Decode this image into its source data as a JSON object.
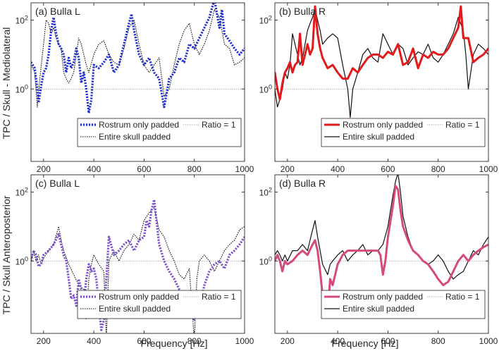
{
  "figure": {
    "ylabel_top": "TPC / Skull - Mediolateral",
    "ylabel_bottom": "TPC / Skull Anteroposterior",
    "xlabel": "Frequency [Hz]"
  },
  "chart_data": [
    {
      "type": "line",
      "title": "(a) Bulla L",
      "xlim": [
        150,
        1000
      ],
      "ylim_log10": [
        -2.1,
        2.5
      ],
      "x_ticks": [
        200,
        400,
        600,
        800,
        1000
      ],
      "y_ticks": [
        {
          "value": 100,
          "label": "10",
          "exp": "2"
        },
        {
          "value": 1,
          "label": "10",
          "exp": "0"
        }
      ],
      "legend": [
        "Rostrum only padded",
        "Ratio = 1",
        "Entire skull padded"
      ],
      "series": [
        {
          "name": "Rostrum only padded",
          "color": "#1f2fd0",
          "style": "dotted-thick",
          "x": [
            150,
            165,
            175,
            180,
            190,
            200,
            210,
            220,
            230,
            240,
            250,
            260,
            270,
            280,
            290,
            300,
            310,
            320,
            330,
            340,
            350,
            360,
            370,
            380,
            390,
            400,
            420,
            440,
            460,
            480,
            500,
            520,
            540,
            550,
            560,
            580,
            600,
            620,
            640,
            660,
            680,
            700,
            720,
            740,
            760,
            780,
            800,
            820,
            840,
            860,
            880,
            890,
            900,
            910,
            920,
            940,
            960,
            980,
            1000
          ],
          "y": [
            6,
            4,
            1,
            0.4,
            1.2,
            3,
            4,
            10,
            50,
            120,
            40,
            20,
            15,
            10,
            3,
            8,
            4,
            6,
            15,
            8,
            1.5,
            3,
            1,
            0.2,
            0.5,
            5,
            4,
            6,
            10,
            3,
            5,
            20,
            80,
            150,
            50,
            10,
            5,
            8,
            3,
            2,
            0.3,
            2,
            3,
            8,
            6,
            20,
            15,
            30,
            60,
            120,
            400,
            150,
            60,
            200,
            40,
            25,
            15,
            10,
            15
          ]
        },
        {
          "name": "Ratio = 1",
          "color": "#aaaaaa",
          "style": "reference",
          "x": [
            150,
            1000
          ],
          "y": [
            1,
            1
          ]
        },
        {
          "name": "Entire skull padded",
          "color": "#111111",
          "style": "dotted-thin",
          "x": [
            150,
            165,
            175,
            185,
            200,
            210,
            220,
            230,
            240,
            250,
            260,
            270,
            280,
            290,
            300,
            310,
            320,
            330,
            340,
            350,
            360,
            370,
            380,
            400,
            420,
            440,
            460,
            480,
            500,
            520,
            540,
            560,
            580,
            600,
            620,
            640,
            660,
            680,
            700,
            720,
            740,
            760,
            780,
            800,
            820,
            840,
            860,
            880,
            900,
            920,
            940,
            960,
            980,
            1000
          ],
          "y": [
            5,
            3,
            0.3,
            2,
            20,
            100,
            80,
            40,
            60,
            30,
            20,
            15,
            3,
            2,
            1.5,
            2,
            3,
            10,
            30,
            20,
            10,
            5,
            3,
            10,
            20,
            25,
            10,
            6,
            5,
            15,
            60,
            100,
            20,
            5,
            3,
            5,
            8,
            0.6,
            1,
            5,
            20,
            50,
            80,
            20,
            10,
            20,
            50,
            200,
            120,
            20,
            15,
            5,
            6,
            8
          ]
        }
      ]
    },
    {
      "type": "line",
      "title": "(b) Bulla R",
      "xlim": [
        150,
        1000
      ],
      "ylim_log10": [
        -2.1,
        2.5
      ],
      "x_ticks": [
        200,
        400,
        600,
        800,
        1000
      ],
      "y_ticks": [
        {
          "value": 100,
          "label": "10",
          "exp": "2"
        },
        {
          "value": 1,
          "label": "10",
          "exp": "0"
        }
      ],
      "legend": [
        "Rostrum only padded",
        "Ratio = 1",
        "Entire skull padded"
      ],
      "series": [
        {
          "name": "Rostrum only padded",
          "color": "#e31a1c",
          "style": "solid-thick",
          "x": [
            150,
            160,
            170,
            180,
            190,
            200,
            210,
            220,
            230,
            240,
            250,
            260,
            270,
            280,
            290,
            300,
            310,
            320,
            330,
            340,
            360,
            380,
            400,
            420,
            440,
            460,
            480,
            500,
            520,
            540,
            560,
            580,
            600,
            620,
            640,
            660,
            680,
            700,
            720,
            740,
            760,
            780,
            800,
            820,
            840,
            860,
            880,
            890,
            900,
            920,
            940,
            960,
            980,
            1000
          ],
          "y": [
            3,
            1,
            0.5,
            1.5,
            3,
            4,
            6,
            3,
            5,
            6,
            40,
            5,
            10,
            20,
            10,
            15,
            250,
            40,
            15,
            8,
            4,
            5,
            3,
            2,
            2,
            4,
            3,
            5,
            8,
            10,
            10,
            8,
            12,
            10,
            20,
            5,
            6,
            15,
            4,
            10,
            8,
            12,
            10,
            10,
            15,
            30,
            60,
            250,
            30,
            30,
            6,
            8,
            10,
            15
          ]
        },
        {
          "name": "Ratio = 1",
          "color": "#aaaaaa",
          "style": "reference",
          "x": [
            150,
            1000
          ],
          "y": [
            1,
            1
          ]
        },
        {
          "name": "Entire skull padded",
          "color": "#111111",
          "style": "solid-thin",
          "x": [
            150,
            160,
            170,
            180,
            190,
            200,
            210,
            220,
            230,
            240,
            250,
            260,
            270,
            280,
            290,
            300,
            310,
            320,
            330,
            340,
            360,
            380,
            400,
            420,
            440,
            450,
            460,
            480,
            500,
            520,
            540,
            560,
            580,
            600,
            620,
            640,
            660,
            680,
            700,
            720,
            740,
            760,
            780,
            800,
            820,
            840,
            860,
            880,
            900,
            910,
            920,
            940,
            960,
            980,
            1000
          ],
          "y": [
            1,
            0.3,
            0.5,
            1,
            3,
            2,
            5,
            40,
            20,
            10,
            5,
            8,
            20,
            50,
            80,
            120,
            220,
            100,
            50,
            20,
            30,
            40,
            30,
            5,
            1,
            0.15,
            1,
            3,
            10,
            15,
            8,
            6,
            40,
            20,
            10,
            20,
            15,
            5,
            8,
            12,
            10,
            20,
            8,
            6,
            10,
            20,
            40,
            120,
            50,
            10,
            1,
            10,
            20,
            15,
            10
          ]
        }
      ]
    },
    {
      "type": "line",
      "title": "(c) Bulla L",
      "xlim": [
        150,
        1000
      ],
      "ylim_log10": [
        -2.1,
        2.5
      ],
      "x_ticks": [
        200,
        400,
        600,
        800,
        1000
      ],
      "y_ticks": [
        {
          "value": 100,
          "label": "10",
          "exp": "2"
        },
        {
          "value": 1,
          "label": "10",
          "exp": "0"
        }
      ],
      "legend": [
        "Rostrum only padded",
        "Ratio = 1",
        "Entire skull padded"
      ],
      "series": [
        {
          "name": "Rostrum only padded",
          "color": "#7b4fcf",
          "style": "dotted-thick",
          "x": [
            150,
            160,
            170,
            180,
            190,
            200,
            220,
            240,
            260,
            270,
            280,
            290,
            300,
            310,
            320,
            330,
            340,
            350,
            360,
            370,
            380,
            390,
            400,
            410,
            420,
            430,
            440,
            460,
            480,
            500,
            520,
            540,
            560,
            580,
            600,
            610,
            620,
            630,
            640,
            660,
            680,
            700,
            720,
            740,
            760,
            780,
            800,
            820,
            840,
            860,
            880,
            900,
            920,
            940,
            960,
            980,
            1000
          ],
          "y": [
            1,
            2,
            1.5,
            0.7,
            0.8,
            1.5,
            2,
            3,
            6,
            3,
            1.5,
            1,
            0.3,
            0.08,
            0.1,
            0.05,
            0.3,
            0.15,
            0.06,
            0.3,
            0.8,
            0.5,
            0.6,
            0.3,
            0.05,
            0.01,
            0.02,
            5,
            1.5,
            2,
            3,
            4,
            2,
            4,
            5,
            15,
            10,
            30,
            60,
            3,
            1,
            0.5,
            0.3,
            0.15,
            0.1,
            0.05,
            0.02,
            0.04,
            0.2,
            0.5,
            0.8,
            1,
            0.6,
            1.5,
            2,
            3,
            5
          ]
        },
        {
          "name": "Ratio = 1",
          "color": "#aaaaaa",
          "style": "reference",
          "x": [
            150,
            1000
          ],
          "y": [
            1,
            1
          ]
        },
        {
          "name": "Entire skull padded",
          "color": "#111111",
          "style": "dotted-thin",
          "x": [
            150,
            160,
            170,
            180,
            190,
            200,
            220,
            240,
            260,
            270,
            280,
            300,
            320,
            340,
            360,
            370,
            380,
            390,
            400,
            420,
            440,
            450,
            460,
            480,
            500,
            520,
            540,
            560,
            580,
            600,
            620,
            640,
            660,
            680,
            700,
            720,
            740,
            760,
            780,
            800,
            810,
            820,
            840,
            860,
            880,
            900,
            920,
            940,
            960,
            980,
            1000
          ],
          "y": [
            1,
            2,
            1,
            1.5,
            0.8,
            1.2,
            2,
            3,
            10,
            4,
            2,
            0.8,
            0.4,
            0.2,
            0.15,
            0.02,
            0.3,
            0.8,
            1.5,
            0.8,
            0.5,
            0.005,
            1,
            2,
            1,
            2,
            3,
            6,
            4,
            15,
            25,
            35,
            8,
            5,
            2,
            1,
            0.4,
            0.3,
            0.6,
            0.005,
            0.3,
            1,
            1.5,
            1,
            0.5,
            1,
            2,
            3,
            4,
            8,
            10
          ]
        }
      ]
    },
    {
      "type": "line",
      "title": "(d) Bulla R",
      "xlim": [
        150,
        1000
      ],
      "ylim_log10": [
        -2.1,
        2.5
      ],
      "x_ticks": [
        200,
        400,
        600,
        800,
        1000
      ],
      "y_ticks": [
        {
          "value": 100,
          "label": "10",
          "exp": "2"
        },
        {
          "value": 1,
          "label": "10",
          "exp": "0"
        }
      ],
      "legend": [
        "Rostrum only padded",
        "Ratio = 1",
        "Entire skull padded"
      ],
      "series": [
        {
          "name": "Rostrum only padded",
          "color": "#d44a7f",
          "style": "solid-thick",
          "x": [
            150,
            160,
            170,
            180,
            190,
            200,
            220,
            240,
            260,
            280,
            300,
            310,
            320,
            330,
            340,
            350,
            360,
            370,
            380,
            400,
            420,
            440,
            460,
            480,
            500,
            520,
            540,
            560,
            570,
            580,
            590,
            600,
            620,
            630,
            640,
            650,
            660,
            680,
            700,
            720,
            740,
            760,
            780,
            800,
            820,
            840,
            860,
            880,
            900,
            920,
            940,
            960,
            980,
            1000
          ],
          "y": [
            1,
            1.5,
            1,
            0.5,
            1,
            0.8,
            1,
            1.5,
            2,
            1.5,
            3,
            4,
            2,
            0.5,
            0.1,
            0.05,
            0.03,
            0.3,
            0.2,
            0.8,
            1.5,
            2,
            2,
            2,
            2,
            2,
            2,
            2,
            1.5,
            0.4,
            1,
            5,
            40,
            150,
            120,
            30,
            10,
            4,
            2,
            1.5,
            1,
            0.8,
            0.5,
            0.3,
            0.2,
            0.25,
            0.5,
            1,
            1.5,
            1,
            1.5,
            2,
            2.5,
            3
          ]
        },
        {
          "name": "Ratio = 1",
          "color": "#aaaaaa",
          "style": "reference",
          "x": [
            150,
            1000
          ],
          "y": [
            1,
            1
          ]
        },
        {
          "name": "Entire skull padded",
          "color": "#111111",
          "style": "solid-thin",
          "x": [
            150,
            160,
            170,
            180,
            190,
            200,
            220,
            240,
            260,
            280,
            300,
            310,
            320,
            330,
            340,
            360,
            370,
            380,
            400,
            420,
            440,
            460,
            480,
            500,
            520,
            540,
            560,
            580,
            600,
            620,
            630,
            640,
            650,
            660,
            680,
            700,
            720,
            740,
            760,
            780,
            800,
            820,
            840,
            860,
            880,
            900,
            920,
            940,
            960,
            980,
            1000
          ],
          "y": [
            1.5,
            2,
            1.5,
            1,
            1.5,
            1,
            2,
            2,
            3,
            2,
            8,
            15,
            5,
            2,
            0.8,
            0.4,
            0.8,
            1,
            1.5,
            2,
            1,
            1.5,
            2,
            3,
            1.5,
            2,
            2,
            3,
            10,
            80,
            200,
            350,
            100,
            20,
            5,
            2,
            1.5,
            1,
            0.8,
            1,
            1.5,
            1,
            0.5,
            0.3,
            0.4,
            0.5,
            1,
            2,
            1.5,
            3,
            5
          ]
        }
      ]
    }
  ]
}
